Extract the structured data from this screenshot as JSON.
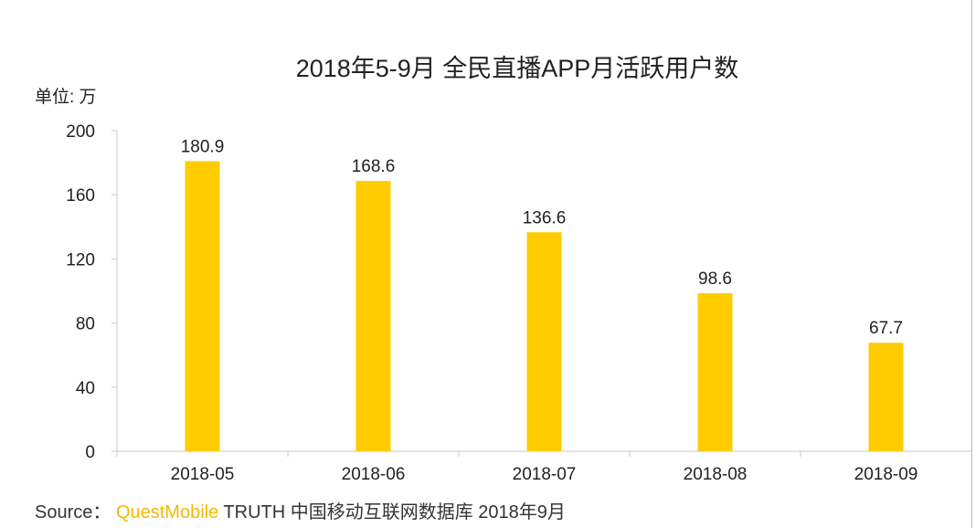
{
  "chart_data": {
    "type": "bar",
    "title": "2018年5-9月 全民直播APP月活跃用户数",
    "unit_label": "单位: 万",
    "xlabel": "",
    "ylabel": "",
    "categories": [
      "2018-05",
      "2018-06",
      "2018-07",
      "2018-08",
      "2018-09"
    ],
    "values": [
      180.9,
      168.6,
      136.6,
      98.6,
      67.7
    ],
    "value_labels": [
      "180.9",
      "168.6",
      "136.6",
      "98.6",
      "67.7"
    ],
    "ylim": [
      0,
      200
    ],
    "yticks": [
      0,
      40,
      80,
      120,
      160,
      200
    ],
    "grid": false,
    "legend": "none",
    "bar_color": "#ffcc00"
  },
  "source": {
    "prefix": "Source：",
    "brand": "QuestMobile",
    "rest": " TRUTH 中国移动互联网数据库 2018年9月"
  },
  "colors": {
    "bar": "#ffcc00",
    "brand": "#f5b800",
    "axis": "#c8c8c8"
  }
}
